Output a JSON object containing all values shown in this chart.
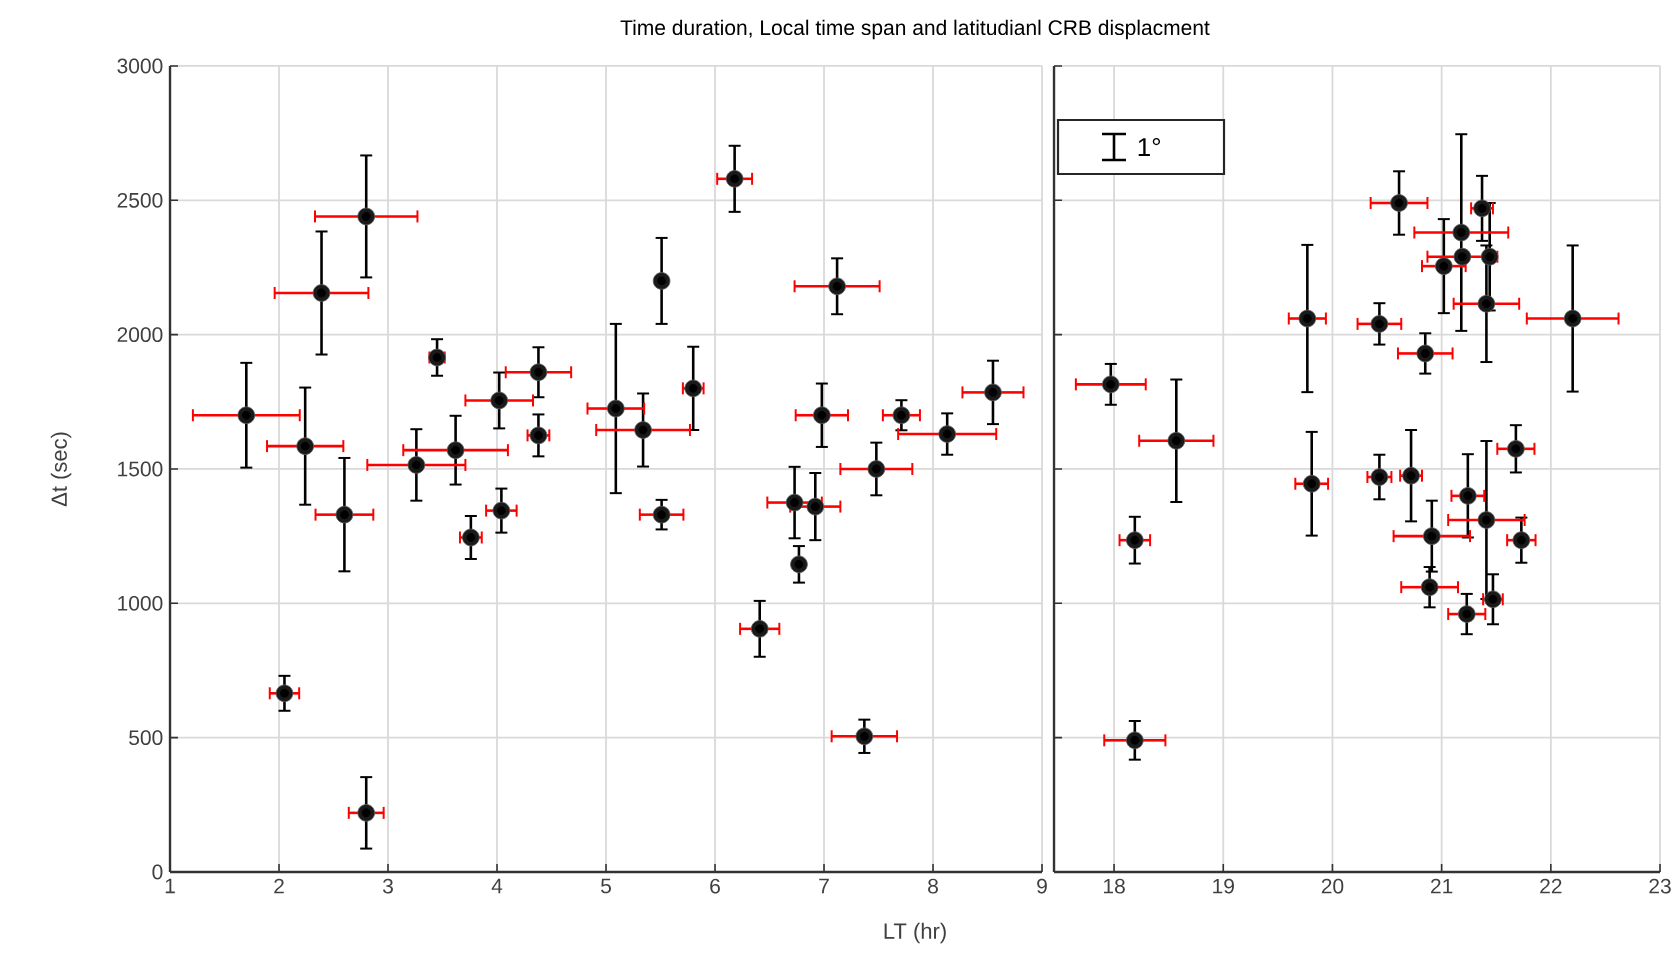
{
  "chart_data": [
    {
      "type": "scatter",
      "title": "Time duration, Local time span and latitudianl CRB displacment",
      "xlabel": "LT (hr)",
      "ylabel": "Δt (sec)",
      "xlim": [
        1,
        9
      ],
      "ylim": [
        0,
        3000
      ],
      "xticks": [
        1,
        2,
        3,
        4,
        5,
        6,
        7,
        8,
        9
      ],
      "yticks": [
        0,
        500,
        1000,
        1500,
        2000,
        2500,
        3000
      ],
      "grid": true,
      "series": [
        {
          "color": "#1a1a1a",
          "x": [
            1.7,
            2.05,
            2.24,
            2.39,
            2.6,
            2.8,
            2.8,
            3.26,
            3.45,
            3.62,
            3.76,
            4.02,
            4.04,
            4.38,
            4.38,
            5.09,
            5.34,
            5.51,
            5.51,
            5.8,
            6.18,
            6.41,
            7.12,
            6.73,
            6.92,
            6.77,
            6.98,
            7.37,
            7.48,
            7.71,
            8.13,
            8.55
          ],
          "values": [
            1700,
            665,
            1585,
            2155,
            1330,
            2440,
            220,
            1515,
            1915,
            1570,
            1245,
            1755,
            1345,
            1860,
            1625,
            1725,
            1645,
            2200,
            1330,
            1800,
            2580,
            905,
            2180,
            1375,
            1360,
            1145,
            1700,
            505,
            1500,
            1700,
            1630,
            1785
          ],
          "errors": [
            195,
            65,
            218,
            229,
            211,
            227,
            133,
            133,
            68,
            128,
            80,
            104,
            82,
            93,
            78,
            315,
            136,
            160,
            55,
            155,
            123,
            104,
            104,
            133,
            125,
            68,
            118,
            62,
            98,
            56,
            77,
            118
          ],
          "xerrors": [
            0.49,
            0.135,
            0.35,
            0.43,
            0.265,
            0.47,
            0.16,
            0.45,
            0.07,
            0.48,
            0.1,
            0.31,
            0.14,
            0.3,
            0.1,
            0.26,
            0.43,
            0.03,
            0.2,
            0.095,
            0.16,
            0.18,
            0.39,
            0.25,
            0.23,
            0.03,
            0.24,
            0.3,
            0.33,
            0.17,
            0.45,
            0.28
          ]
        }
      ]
    },
    {
      "type": "scatter",
      "annotations": [
        "1°"
      ],
      "xlim": [
        17.45,
        23
      ],
      "ylim": [
        0,
        3000
      ],
      "xticks": [
        18,
        19,
        20,
        21,
        22,
        23
      ],
      "yticks": [
        0,
        500,
        1000,
        1500,
        2000,
        2500,
        3000
      ],
      "tick_labels": "x",
      "grid": true,
      "series": [
        {
          "color": "#1a1a1a",
          "x": [
            17.97,
            18.19,
            18.57,
            18.19,
            19.77,
            19.81,
            20.61,
            20.43,
            20.85,
            20.43,
            20.72,
            20.91,
            20.89,
            21.02,
            21.18,
            21.19,
            21.37,
            21.44,
            21.41,
            22.2,
            21.24,
            21.41,
            21.68,
            21.73,
            21.23,
            21.47
          ],
          "values": [
            1815,
            1235,
            1605,
            490,
            2060,
            1445,
            2490,
            2040,
            1930,
            1470,
            1475,
            1250,
            1060,
            2255,
            2380,
            2290,
            2470,
            2290,
            2115,
            2060,
            1400,
            1310,
            1575,
            1235,
            960,
            1015
          ],
          "errors": [
            76,
            87,
            228,
            72,
            274,
            193,
            118,
            77,
            75,
            83,
            170,
            132,
            75,
            175,
            366,
            null,
            121,
            200,
            217,
            272,
            155,
            294,
            88,
            84,
            75,
            93
          ],
          "xerrors": [
            0.32,
            0.14,
            0.34,
            0.28,
            0.17,
            0.15,
            0.26,
            0.2,
            0.25,
            0.11,
            0.1,
            0.35,
            0.26,
            0.2,
            0.43,
            0.32,
            0.1,
            null,
            0.3,
            0.42,
            0.15,
            0.35,
            0.17,
            0.13,
            0.17,
            0.09
          ]
        }
      ]
    }
  ]
}
